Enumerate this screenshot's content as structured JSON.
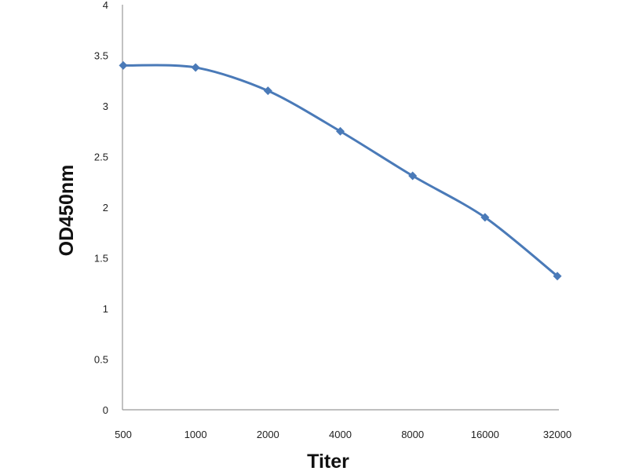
{
  "chart_data": {
    "type": "line",
    "title": "",
    "xlabel": "Titer",
    "ylabel": "OD450nm",
    "categories": [
      "500",
      "1000",
      "2000",
      "4000",
      "8000",
      "16000",
      "32000"
    ],
    "series": [
      {
        "values": [
          3.4,
          3.38,
          3.15,
          2.75,
          2.31,
          1.9,
          1.32
        ],
        "color": "#4a7ab8",
        "marker": "diamond",
        "smooth": true
      }
    ],
    "ylim": [
      0,
      4
    ],
    "yticks": [
      "0",
      "0.5",
      "1",
      "1.5",
      "2",
      "2.5",
      "3",
      "3.5",
      "4"
    ],
    "grid": false,
    "legend": "none"
  }
}
